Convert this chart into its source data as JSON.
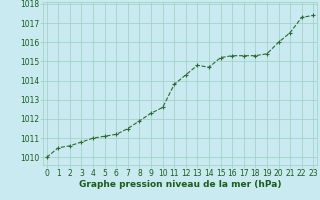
{
  "x": [
    0,
    1,
    2,
    3,
    4,
    5,
    6,
    7,
    8,
    9,
    10,
    11,
    12,
    13,
    14,
    15,
    16,
    17,
    18,
    19,
    20,
    21,
    22,
    23
  ],
  "y": [
    1010.0,
    1010.5,
    1010.6,
    1010.8,
    1011.0,
    1011.1,
    1011.2,
    1011.5,
    1011.9,
    1012.3,
    1012.6,
    1013.8,
    1014.3,
    1014.8,
    1014.7,
    1015.2,
    1015.3,
    1015.3,
    1015.3,
    1015.4,
    1016.0,
    1016.5,
    1017.3,
    1017.4
  ],
  "line_color": "#2d6a2d",
  "marker_color": "#2d6a2d",
  "bg_color": "#c8eaf0",
  "grid_color": "#9dcfbf",
  "title": "Graphe pression niveau de la mer (hPa)",
  "ylabel_ticks": [
    1010,
    1011,
    1012,
    1013,
    1014,
    1015,
    1016,
    1017,
    1018
  ],
  "ylim": [
    1009.6,
    1018.1
  ],
  "xlim": [
    -0.3,
    23.3
  ],
  "title_color": "#1a5c1a",
  "title_fontsize": 6.5,
  "tick_fontsize": 5.5,
  "tick_color": "#1a5c1a"
}
